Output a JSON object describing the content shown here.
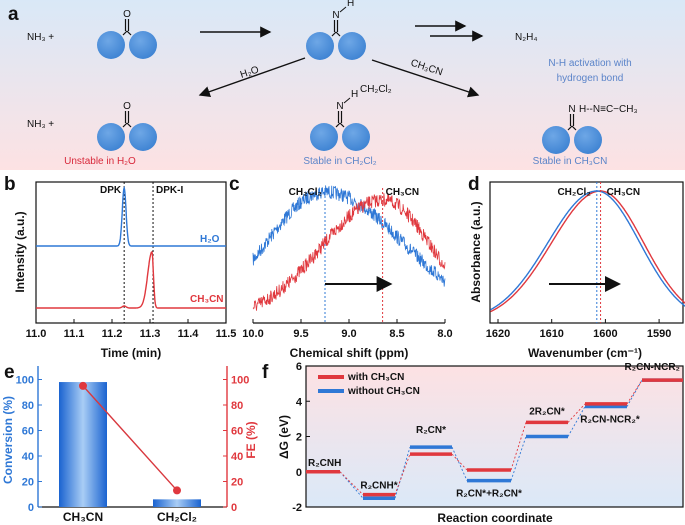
{
  "panel_labels": {
    "a": "a",
    "b": "b",
    "c": "c",
    "d": "d",
    "e": "e",
    "f": "f"
  },
  "scheme": {
    "nh3_top": "NH₃ +",
    "nh3_bottom": "NH₃ +",
    "o": "O",
    "n": "N",
    "h": "H",
    "n2h4": "N₂H₄",
    "h2o_arrow": "H₂O",
    "ch3cn_arrow": "CH₃CN",
    "ch2cl2_mid": "CH₂Cl₂",
    "activation_line1": "N-H activation with",
    "activation_line2": "hydrogen bond",
    "hbond_chain": "H--N≡C−CH₃",
    "unstable_h2o": "Unstable in H₂O",
    "stable_ch2cl2": "Stable in CH₂Cl₂",
    "stable_ch3cn": "Stable in CH₃CN",
    "colors": {
      "top_bg": "#dce9f7",
      "bottom_bg": "#fbe3e4",
      "sphere": "#4a8fd8",
      "red": "#d8283a",
      "blue": "#5b84c9"
    }
  },
  "chart_data": [
    {
      "id": "b",
      "type": "line",
      "xlabel": "Time (min)",
      "ylabel": "Intensity (a.u.)",
      "xlim": [
        11.0,
        11.5
      ],
      "xticks": [
        "11.0",
        "11.1",
        "11.2",
        "11.3",
        "11.4",
        "11.5"
      ],
      "markers": [
        {
          "label": "DPK",
          "x": 11.232
        },
        {
          "label": "DPK-I",
          "x": 11.308
        }
      ],
      "series": [
        {
          "name": "H₂O",
          "color": "#2f78d6",
          "peak_x": 11.232
        },
        {
          "name": "CH₃CN",
          "color": "#e0383e",
          "peak_x": 11.305
        }
      ]
    },
    {
      "id": "c",
      "type": "line",
      "xlabel": "Chemical shift (ppm)",
      "ylabel": "",
      "xlim": [
        10.0,
        8.0
      ],
      "xticks": [
        "10.0",
        "9.5",
        "9.0",
        "8.5",
        "8.0"
      ],
      "series": [
        {
          "name": "CH₂Cl₂",
          "color": "#2f78d6",
          "peak_x": 9.25
        },
        {
          "name": "CH₃CN",
          "color": "#e0383e",
          "peak_x": 8.65
        }
      ]
    },
    {
      "id": "d",
      "type": "line",
      "xlabel": "Wavenumber (cm⁻¹)",
      "ylabel": "Absorbance (a.u.)",
      "xlim": [
        1620,
        1585
      ],
      "xticks": [
        "1620",
        "1610",
        "1600",
        "1590"
      ],
      "series": [
        {
          "name": "CH₂Cl₂",
          "color": "#2f78d6",
          "peak_x": 1601.6
        },
        {
          "name": "CH₃CN",
          "color": "#e0383e",
          "peak_x": 1600.9
        }
      ]
    },
    {
      "id": "e",
      "type": "bar",
      "categories": [
        "CH₃CN",
        "CH₂Cl₂"
      ],
      "ylabel": "Conversion (%)",
      "y2label": "FE (%)",
      "ylim": [
        0,
        110
      ],
      "yticks": [
        "0",
        "20",
        "40",
        "60",
        "80",
        "100"
      ],
      "series": [
        {
          "name": "Conversion",
          "axis": "left",
          "color": "#1f6fd6",
          "values": [
            98,
            6
          ]
        },
        {
          "name": "FE",
          "axis": "right",
          "color": "#e0383e",
          "values": [
            95,
            13
          ]
        }
      ]
    },
    {
      "id": "f",
      "type": "line",
      "xlabel": "Reaction coordinate",
      "ylabel": "ΔG (eV)",
      "ylim": [
        -2,
        6
      ],
      "yticks": [
        "-2",
        "0",
        "2",
        "4",
        "6"
      ],
      "states": [
        "R₂CNH",
        "R₂CNH*",
        "R₂CN*",
        "R₂CN*+R₂CN*",
        "2R₂CN*",
        "R₂CN-NCR₂*",
        "R₂CN-NCR₂"
      ],
      "series": [
        {
          "name": "with CH₃CN",
          "color": "#e0383e",
          "values": [
            0,
            -1.3,
            1.0,
            0.1,
            2.8,
            3.85,
            5.2
          ]
        },
        {
          "name": "without CH₃CN",
          "color": "#2f78d6",
          "values": [
            0,
            -1.5,
            1.4,
            -0.5,
            2.0,
            3.7,
            5.2
          ]
        }
      ]
    }
  ]
}
